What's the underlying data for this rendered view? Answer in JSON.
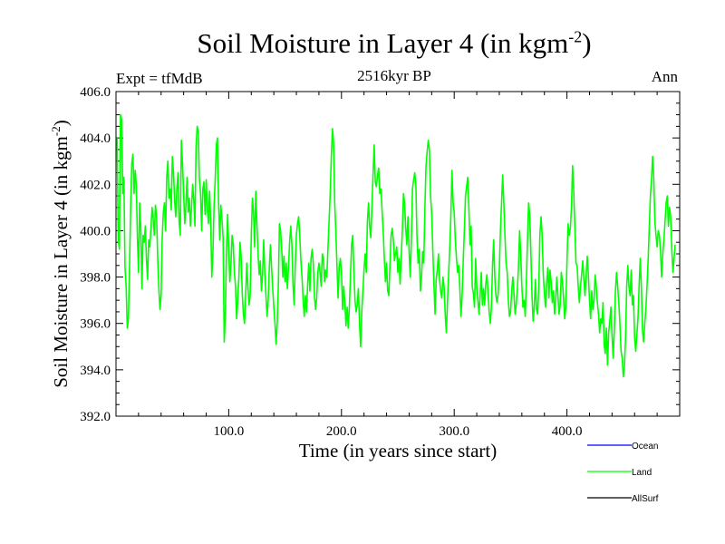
{
  "chart_data": {
    "type": "line",
    "title_main": "Soil Moisture in Layer 4 (in kgm",
    "title_sup": "-2",
    "title_close": ")",
    "subtitle": "2516kyr BP",
    "expt_label": "Expt = tfMdB",
    "season_label": "Ann",
    "xlabel": "Time (in years since start)",
    "ylabel_main": "Soil Moisture in Layer 4 (in kgm",
    "ylabel_sup": "-2",
    "ylabel_close": ")",
    "xlim": [
      0,
      500
    ],
    "ylim": [
      392,
      406
    ],
    "xticks": [
      {
        "value": 100,
        "label": "100.0"
      },
      {
        "value": 200,
        "label": "200.0"
      },
      {
        "value": 300,
        "label": "300.0"
      },
      {
        "value": 400,
        "label": "400.0"
      }
    ],
    "yticks": [
      {
        "value": 392,
        "label": "392.0"
      },
      {
        "value": 394,
        "label": "394.0"
      },
      {
        "value": 396,
        "label": "396.0"
      },
      {
        "value": 398,
        "label": "398.0"
      },
      {
        "value": 400,
        "label": "400.0"
      },
      {
        "value": 402,
        "label": "402.0"
      },
      {
        "value": 404,
        "label": "404.0"
      },
      {
        "value": 406,
        "label": "406.0"
      }
    ],
    "legend": [
      {
        "name": "Ocean",
        "color": "#0000ff"
      },
      {
        "name": "Land",
        "color": "#00ff00"
      },
      {
        "name": "AllSurf",
        "color": "#000000"
      }
    ],
    "series": [
      {
        "name": "Land",
        "color": "#00ff00",
        "x_start": 1,
        "x_step": 1,
        "values": [
          404.0,
          399.6,
          399.2,
          405.0,
          404.8,
          401.6,
          402.3,
          398.4,
          397.6,
          395.8,
          396.2,
          398.5,
          401.0,
          402.9,
          403.3,
          401.6,
          402.6,
          402.0,
          399.7,
          398.2,
          401.2,
          400.1,
          397.5,
          399.8,
          399.5,
          400.2,
          398.8,
          397.9,
          399.6,
          399.3,
          400.1,
          401.0,
          400.5,
          399.8,
          401.1,
          400.6,
          398.8,
          397.5,
          396.6,
          397.2,
          399.7,
          400.8,
          401.2,
          400.0,
          402.3,
          403.0,
          401.4,
          401.8,
          400.9,
          403.2,
          402.5,
          401.3,
          400.6,
          401.8,
          402.5,
          400.4,
          399.8,
          403.9,
          402.9,
          401.6,
          400.3,
          401.1,
          402.3,
          400.8,
          401.4,
          400.2,
          401.0,
          402.0,
          401.3,
          400.2,
          403.6,
          404.5,
          404.3,
          402.2,
          401.6,
          400.0,
          401.8,
          402.1,
          400.7,
          402.2,
          401.0,
          400.3,
          401.7,
          400.4,
          398.0,
          399.1,
          401.1,
          402.2,
          403.7,
          404.0,
          401.2,
          399.6,
          401.1,
          400.5,
          399.7,
          395.2,
          396.4,
          399.1,
          400.7,
          399.2,
          397.8,
          398.6,
          399.8,
          399.4,
          398.2,
          397.6,
          396.2,
          397.0,
          398.0,
          399.5,
          398.9,
          397.3,
          396.4,
          396.0,
          397.2,
          398.6,
          397.6,
          396.8,
          397.2,
          399.8,
          401.4,
          400.8,
          399.3,
          401.7,
          400.3,
          399.0,
          398.1,
          398.7,
          397.4,
          398.1,
          399.6,
          398.2,
          397.2,
          396.3,
          397.0,
          398.4,
          399.4,
          398.4,
          397.5,
          396.7,
          396.0,
          395.1,
          396.0,
          397.6,
          400.3,
          400.0,
          399.2,
          398.0,
          398.9,
          397.8,
          398.6,
          397.5,
          398.4,
          399.5,
          400.2,
          399.4,
          397.7,
          396.8,
          398.5,
          399.8,
          400.3,
          400.6,
          399.8,
          398.7,
          398.0,
          397.0,
          396.3,
          397.2,
          396.5,
          397.7,
          398.6,
          397.4,
          398.8,
          399.2,
          398.6,
          397.2,
          396.6,
          397.1,
          398.2,
          398.6,
          398.2,
          397.6,
          399.0,
          398.8,
          397.8,
          398.3,
          398.0,
          399.2,
          400.4,
          401.6,
          403.2,
          404.4,
          403.8,
          401.2,
          400.0,
          398.5,
          397.1,
          398.4,
          398.8,
          398.2,
          396.6,
          397.6,
          396.9,
          395.9,
          396.7,
          395.8,
          396.7,
          398.1,
          399.4,
          399.8,
          398.2,
          397.0,
          396.5,
          396.8,
          397.5,
          396.0,
          395.0,
          396.5,
          397.4,
          398.3,
          399.0,
          398.2,
          400.4,
          401.2,
          400.2,
          399.7,
          401.0,
          402.4,
          403.7,
          402.1,
          401.9,
          402.4,
          402.7,
          401.6,
          401.8,
          400.9,
          400.0,
          398.8,
          397.8,
          398.6,
          397.4,
          397.2,
          398.5,
          399.8,
          400.1,
          399.6,
          398.7,
          399.0,
          399.3,
          398.2,
          398.8,
          397.7,
          398.9,
          400.0,
          401.6,
          401.2,
          400.1,
          399.4,
          400.6,
          399.1,
          398.0,
          399.6,
          401.8,
          402.2,
          402.5,
          402.0,
          399.7,
          398.6,
          399.2,
          397.4,
          398.0,
          399.1,
          398.6,
          401.0,
          402.8,
          403.4,
          403.9,
          403.5,
          401.5,
          400.8,
          399.2,
          397.7,
          396.4,
          397.9,
          398.3,
          399.0,
          397.9,
          397.4,
          397.1,
          398.0,
          397.6,
          396.4,
          395.6,
          396.9,
          398.1,
          399.2,
          400.6,
          402.6,
          401.2,
          400.8,
          399.6,
          398.8,
          398.2,
          398.5,
          397.5,
          396.3,
          397.2,
          398.7,
          400.0,
          401.5,
          401.9,
          402.3,
          401.0,
          399.4,
          400.2,
          397.6,
          397.3,
          396.7,
          398.8,
          397.6,
          397.0,
          396.4,
          397.2,
          398.2,
          396.8,
          397.5,
          396.8,
          397.7,
          398.1,
          397.4,
          396.5,
          396.0,
          396.7,
          398.5,
          399.6,
          398.0,
          397.2,
          396.9,
          397.3,
          398.3,
          400.0,
          401.2,
          402.4,
          401.2,
          399.8,
          398.6,
          398.2,
          397.0,
          396.3,
          396.5,
          397.4,
          398.0,
          397.3,
          396.4,
          396.8,
          397.5,
          398.4,
          400.0,
          399.0,
          397.6,
          396.7,
          397.0,
          396.3,
          397.8,
          399.6,
          401.2,
          400.7,
          399.1,
          397.2,
          396.1,
          396.7,
          397.9,
          396.6,
          396.4,
          397.6,
          399.8,
          400.6,
          399.8,
          398.1,
          397.3,
          396.7,
          397.7,
          398.4,
          397.1,
          398.3,
          397.8,
          396.9,
          397.4,
          396.4,
          397.0,
          398.0,
          397.2,
          396.4,
          396.8,
          398.2,
          397.8,
          397.1,
          396.2,
          396.7,
          398.6,
          400.3,
          399.8,
          400.1,
          401.0,
          402.8,
          401.7,
          400.2,
          398.6,
          398.5,
          397.6,
          396.9,
          397.6,
          398.1,
          398.7,
          397.9,
          397.2,
          398.0,
          398.9,
          398.1,
          397.0,
          396.2,
          397.4,
          396.6,
          397.0,
          398.1,
          397.6,
          396.9,
          396.4,
          395.6,
          396.2,
          396.0,
          396.9,
          395.1,
          394.7,
          395.8,
          394.2,
          395.6,
          396.1,
          396.7,
          395.5,
          394.5,
          395.7,
          397.4,
          398.2,
          397.6,
          396.9,
          396.0,
          394.8,
          394.5,
          393.7,
          394.1,
          395.4,
          397.6,
          398.5,
          397.6,
          397.2,
          398.3,
          396.8,
          397.2,
          395.4,
          394.8,
          395.5,
          396.2,
          397.6,
          398.8,
          397.6,
          395.7,
          395.2,
          396.0,
          396.6,
          397.6,
          398.7,
          400.1,
          401.5,
          402.2,
          403.2,
          402.3,
          400.4,
          399.8,
          399.3,
          400.0,
          399.8,
          399.1,
          398.0,
          399.0,
          399.6,
          400.4,
          401.2,
          401.5,
          400.2,
          401.0,
          400.6,
          399.2,
          398.2,
          398.8,
          399.4
        ]
      }
    ]
  }
}
